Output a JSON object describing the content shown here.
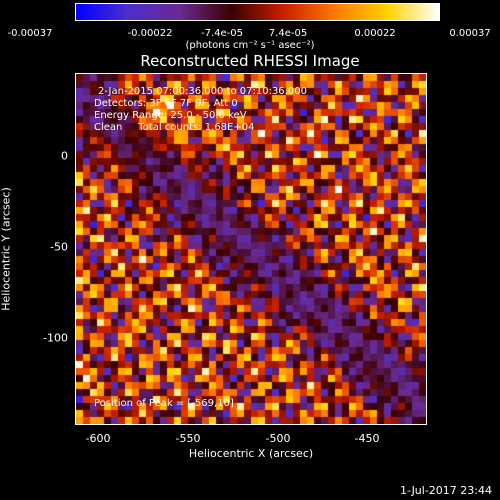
{
  "chart_data": {
    "type": "heatmap",
    "title": "Reconstructed RHESSI Image",
    "colorbar": {
      "ticks": [
        "-0.00037",
        "-0.00022",
        "-7.4e-05",
        "7.4e-05",
        "0.00022",
        "0.00037"
      ],
      "units_label": "(photons cm⁻² s⁻¹ asec⁻²)",
      "range": [
        -0.00037,
        0.00037
      ],
      "colormap": [
        "#0000ff",
        "#4b2fcf",
        "#6a2a8f",
        "#3a0000",
        "#c82000",
        "#ff7a00",
        "#ffd200",
        "#ffffff"
      ]
    },
    "xlabel": "Heliocentric X (arcsec)",
    "ylabel": "Heliocentric Y (arcsec)",
    "xlim": [
      -612,
      -418
    ],
    "ylim": [
      -147,
      17
    ],
    "xticks": [
      "-600",
      "-550",
      "-500",
      "-450"
    ],
    "yticks": [
      "0",
      "-50",
      "-100"
    ],
    "annotations": [
      "2-Jan-2015 07:00:36.000 to 07:10:36.000",
      "Detectors: 3F 6F 7F 9F, Att 0",
      "Energy Range: 25.0 - 50.0 keV",
      "Clean     Total counts: 1.68E+04"
    ],
    "peak_label": "Position of Peak = [-569,10]",
    "peak_position": [
      -569,
      10
    ]
  },
  "footer": {
    "timestamp": "1-Jul-2017 23:44"
  }
}
